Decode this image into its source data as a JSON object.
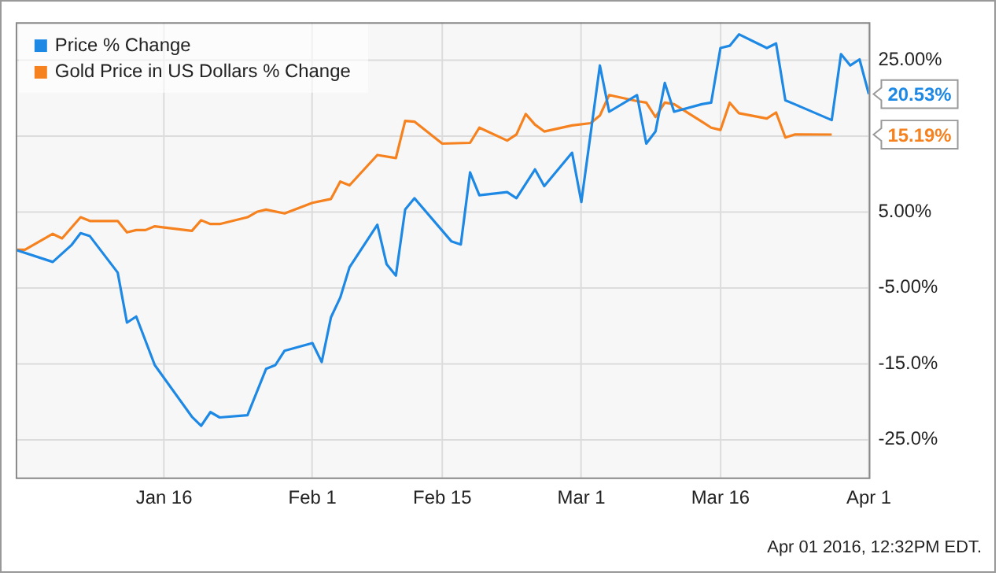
{
  "chart_data": {
    "type": "line",
    "x": [
      "2015-12-31",
      "2016-01-04",
      "2016-01-06",
      "2016-01-07",
      "2016-01-08",
      "2016-01-11",
      "2016-01-12",
      "2016-01-13",
      "2016-01-15",
      "2016-01-19",
      "2016-01-20",
      "2016-01-21",
      "2016-01-22",
      "2016-01-25",
      "2016-01-27",
      "2016-01-28",
      "2016-01-29",
      "2016-02-01",
      "2016-02-02",
      "2016-02-03",
      "2016-02-04",
      "2016-02-05",
      "2016-02-08",
      "2016-02-09",
      "2016-02-10",
      "2016-02-11",
      "2016-02-12",
      "2016-02-16",
      "2016-02-17",
      "2016-02-18",
      "2016-02-19",
      "2016-02-22",
      "2016-02-23",
      "2016-02-25",
      "2016-02-26",
      "2016-02-29",
      "2016-03-01",
      "2016-03-03",
      "2016-03-04",
      "2016-03-07",
      "2016-03-08",
      "2016-03-09",
      "2016-03-10",
      "2016-03-11",
      "2016-03-14",
      "2016-03-15",
      "2016-03-16",
      "2016-03-17",
      "2016-03-18",
      "2016-03-21",
      "2016-03-22",
      "2016-03-23",
      "2016-03-24",
      "2016-03-28",
      "2016-03-29",
      "2016-03-30",
      "2016-03-31",
      "2016-04-01"
    ],
    "series": [
      {
        "name": "Price % Change",
        "color": "#1e88e5",
        "values": [
          0,
          -1.6,
          0.6,
          2.2,
          1.8,
          -3.0,
          -9.6,
          -8.8,
          -15.2,
          -22.0,
          -23.2,
          -21.4,
          -22.1,
          -21.8,
          -15.7,
          -15.2,
          -13.3,
          -12.3,
          -14.8,
          -8.9,
          -6.3,
          -2.3,
          3.3,
          -1.9,
          -3.4,
          5.3,
          6.8,
          1.1,
          0.7,
          10.2,
          7.2,
          7.6,
          6.8,
          10.6,
          8.4,
          12.8,
          6.3,
          24.3,
          18.2,
          20.4,
          14.0,
          15.6,
          22.0,
          18.2,
          19.2,
          19.4,
          26.6,
          26.9,
          28.4,
          26.6,
          27.2,
          19.7,
          19.2,
          17.1,
          25.8,
          24.3,
          25.1,
          20.53
        ]
      },
      {
        "name": "Gold Price in US Dollars % Change",
        "color": "#f5821f",
        "x": [
          "2015-12-31",
          "2016-01-01",
          "2016-01-04",
          "2016-01-05",
          "2016-01-07",
          "2016-01-08",
          "2016-01-11",
          "2016-01-12",
          "2016-01-13",
          "2016-01-14",
          "2016-01-15",
          "2016-01-19",
          "2016-01-20",
          "2016-01-21",
          "2016-01-22",
          "2016-01-25",
          "2016-01-26",
          "2016-01-27",
          "2016-01-29",
          "2016-02-01",
          "2016-02-03",
          "2016-02-04",
          "2016-02-05",
          "2016-02-08",
          "2016-02-10",
          "2016-02-11",
          "2016-02-12",
          "2016-02-15",
          "2016-02-18",
          "2016-02-19",
          "2016-02-22",
          "2016-02-23",
          "2016-02-24",
          "2016-02-25",
          "2016-02-26",
          "2016-02-29",
          "2016-03-02",
          "2016-03-03",
          "2016-03-04",
          "2016-03-07",
          "2016-03-08",
          "2016-03-09",
          "2016-03-10",
          "2016-03-11",
          "2016-03-14",
          "2016-03-15",
          "2016-03-16",
          "2016-03-17",
          "2016-03-18",
          "2016-03-21",
          "2016-03-22",
          "2016-03-23",
          "2016-03-24",
          "2016-03-28"
        ],
        "values": [
          0,
          0,
          2.1,
          1.5,
          4.3,
          3.8,
          3.8,
          2.3,
          2.6,
          2.6,
          3.1,
          2.5,
          3.9,
          3.4,
          3.4,
          4.3,
          5.0,
          5.3,
          4.8,
          6.2,
          6.7,
          9.0,
          8.5,
          12.5,
          12.1,
          17.0,
          16.9,
          14.0,
          14.1,
          16.1,
          14.4,
          15.2,
          17.9,
          16.5,
          15.6,
          16.4,
          16.7,
          17.7,
          20.4,
          19.6,
          19.4,
          17.5,
          19.4,
          19.2,
          16.9,
          16.1,
          15.8,
          19.4,
          18.0,
          17.3,
          18.1,
          14.8,
          15.2,
          15.19
        ]
      }
    ],
    "xlim": [
      "2015-12-31",
      "2016-04-01"
    ],
    "xticks": [
      {
        "value": "2016-01-16",
        "label": "Jan 16"
      },
      {
        "value": "2016-02-01",
        "label": "Feb 1"
      },
      {
        "value": "2016-02-15",
        "label": "Feb 15"
      },
      {
        "value": "2016-03-01",
        "label": "Mar 1"
      },
      {
        "value": "2016-03-16",
        "label": "Mar 16"
      },
      {
        "value": "2016-04-01",
        "label": "Apr 1"
      }
    ],
    "ylim": [
      -30,
      30
    ],
    "yticks": [
      {
        "value": -25,
        "label": "-25.0%"
      },
      {
        "value": -15,
        "label": "-15.0%"
      },
      {
        "value": -5,
        "label": "-5.00%"
      },
      {
        "value": 5,
        "label": "5.00%"
      },
      {
        "value": 15,
        "label": null
      },
      {
        "value": 25,
        "label": "25.00%"
      }
    ],
    "grid": true,
    "legend": "top left",
    "marker": "none",
    "line_style": "solid",
    "annotations": [
      {
        "text": "20.53%",
        "x": "2016-04-01",
        "y": 20.53
      },
      {
        "text": "15.19%",
        "x": "2016-03-28",
        "y": 15.19
      },
      "Apr 01 2016, 12:32PM EDT."
    ]
  }
}
